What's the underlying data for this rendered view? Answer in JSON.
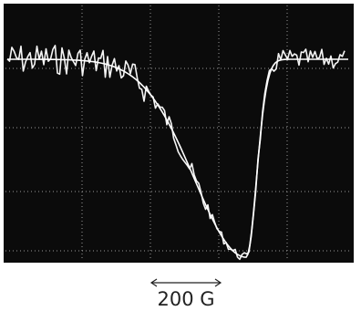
{
  "scale_label": "200 G"
}
